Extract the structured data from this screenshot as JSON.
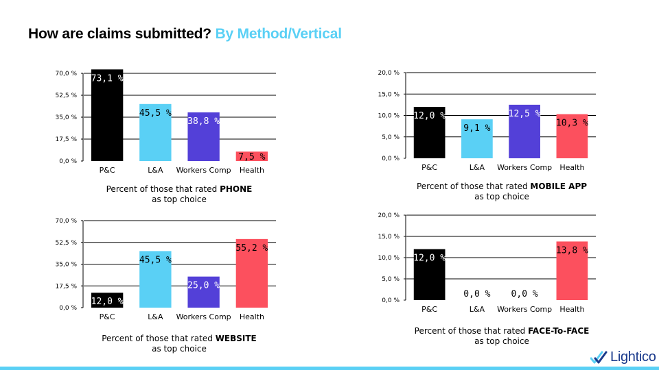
{
  "header": {
    "title_main": "How are claims submitted?",
    "title_highlight": "By Method/Vertical"
  },
  "colors": {
    "pc": "#000000",
    "la": "#5ad0f5",
    "wc": "#5340d8",
    "health": "#fc505e",
    "accent": "#5ad0f5",
    "brand": "#1a3a8c"
  },
  "brand": {
    "name": "Lightico",
    "icon": "lightico-check-icon"
  },
  "chart_data": [
    {
      "type": "bar",
      "categories": [
        "P&C",
        "L&A",
        "Workers Comp",
        "Health"
      ],
      "values": [
        73.1,
        45.5,
        38.8,
        7.5
      ],
      "value_labels": [
        "73,1 %",
        "45,5 %",
        "38,8 %",
        "7,5 %"
      ],
      "yticks": [
        "0,0 %",
        "17,5 %",
        "35,0 %",
        "52,5 %",
        "70,0 %"
      ],
      "ylim": [
        0,
        70
      ],
      "grid": true,
      "caption_prefix": "Percent of those that rated ",
      "caption_bold": "PHONE",
      "caption_suffix": "as top choice"
    },
    {
      "type": "bar",
      "categories": [
        "P&C",
        "L&A",
        "Workers Comp",
        "Health"
      ],
      "values": [
        12.0,
        9.1,
        12.5,
        10.3
      ],
      "value_labels": [
        "12,0 %",
        "9,1 %",
        "12,5 %",
        "10,3 %"
      ],
      "yticks": [
        "0,0 %",
        "5,0 %",
        "10,0 %",
        "15,0 %",
        "20,0 %"
      ],
      "ylim": [
        0,
        20
      ],
      "grid": true,
      "caption_prefix": "Percent of those that rated ",
      "caption_bold": "MOBILE APP",
      "caption_suffix": "as top choice"
    },
    {
      "type": "bar",
      "categories": [
        "P&C",
        "L&A",
        "Workers Comp",
        "Health"
      ],
      "values": [
        12.0,
        45.5,
        25.0,
        55.2
      ],
      "value_labels": [
        "12,0 %",
        "45,5 %",
        "25,0 %",
        "55,2 %"
      ],
      "yticks": [
        "0,0 %",
        "17,5 %",
        "35,0 %",
        "52,5 %",
        "70,0 %"
      ],
      "ylim": [
        0,
        70
      ],
      "grid": true,
      "caption_prefix": "Percent of those that rated ",
      "caption_bold": "WEBSITE",
      "caption_suffix": "as top choice"
    },
    {
      "type": "bar",
      "categories": [
        "P&C",
        "L&A",
        "Workers Comp",
        "Health"
      ],
      "values": [
        12.0,
        0.0,
        0.0,
        13.8
      ],
      "value_labels": [
        "12,0 %",
        "0,0 %",
        "0,0 %",
        "13,8 %"
      ],
      "yticks": [
        "0,0 %",
        "5,0 %",
        "10,0 %",
        "15,0 %",
        "20,0 %"
      ],
      "ylim": [
        0,
        20
      ],
      "grid": true,
      "caption_prefix": "Percent of those that rated ",
      "caption_bold": "FACE-To-FACE",
      "caption_suffix": "as top choice"
    }
  ]
}
